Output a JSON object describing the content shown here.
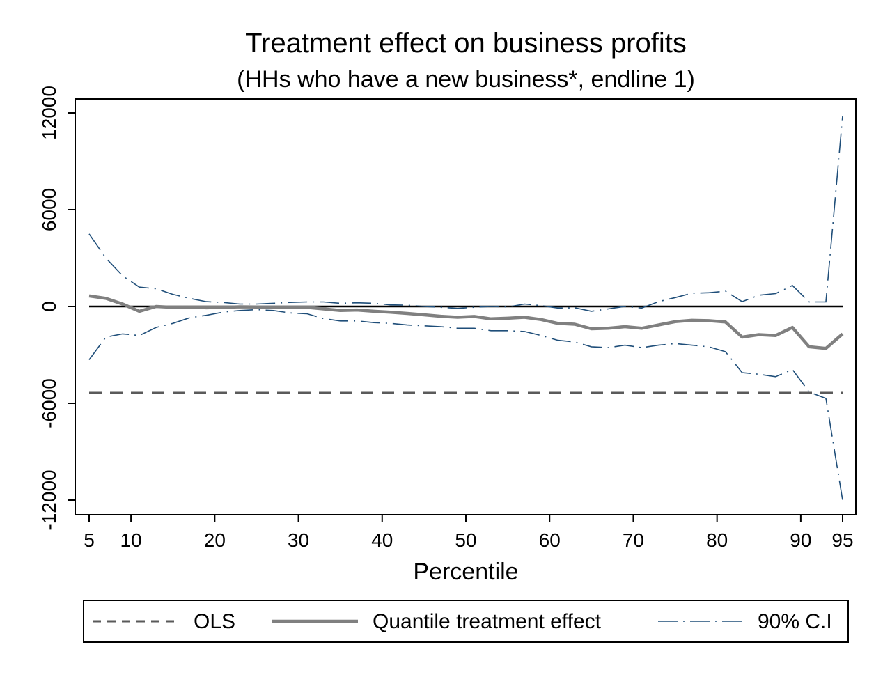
{
  "chart_data": {
    "type": "line",
    "title": "Treatment effect on business profits",
    "subtitle": "(HHs who have a new business*, endline 1)",
    "xlabel": "Percentile",
    "ylabel": "",
    "xlim": [
      5,
      95
    ],
    "ylim": [
      -12000,
      12000
    ],
    "x_ticks": [
      5,
      10,
      20,
      30,
      40,
      50,
      60,
      70,
      80,
      90,
      95
    ],
    "x_tick_labels": [
      "5",
      "10",
      "20",
      "30",
      "40",
      "50",
      "60",
      "70",
      "80",
      "90",
      "95"
    ],
    "y_ticks": [
      -12000,
      -6000,
      0,
      6000,
      12000
    ],
    "y_tick_labels": [
      "-12000",
      "-6000",
      "0",
      "6000",
      "12000"
    ],
    "grid": false,
    "legend_position": "bottom",
    "x": [
      5,
      7,
      9,
      11,
      13,
      15,
      17,
      19,
      21,
      23,
      25,
      27,
      29,
      31,
      33,
      35,
      37,
      39,
      41,
      43,
      45,
      47,
      49,
      51,
      53,
      55,
      57,
      59,
      61,
      63,
      65,
      67,
      69,
      71,
      73,
      75,
      77,
      79,
      81,
      83,
      85,
      87,
      89,
      91,
      93,
      95
    ],
    "zero_line": {
      "y": 0,
      "color": "#000000"
    },
    "series": [
      {
        "name": "OLS",
        "style": "dashed",
        "color": "#5a5a5a",
        "constant": -5350
      },
      {
        "name": "Quantile treatment effect",
        "style": "solid",
        "color": "#808080",
        "values": [
          650,
          500,
          150,
          -300,
          0,
          -50,
          -30,
          -80,
          -50,
          -20,
          -30,
          -30,
          -50,
          -50,
          -150,
          -250,
          -220,
          -300,
          -360,
          -430,
          -520,
          -610,
          -670,
          -620,
          -770,
          -730,
          -670,
          -810,
          -1050,
          -1100,
          -1380,
          -1350,
          -1250,
          -1350,
          -1150,
          -940,
          -860,
          -880,
          -960,
          -1900,
          -1750,
          -1800,
          -1300,
          -2500,
          -2600,
          -1700
        ]
      },
      {
        "name": "90% C.I",
        "style": "dash-dot",
        "color": "#1f4e79",
        "upper": [
          4500,
          3000,
          1900,
          1200,
          1100,
          750,
          500,
          300,
          250,
          150,
          150,
          200,
          250,
          280,
          280,
          200,
          230,
          200,
          100,
          80,
          0,
          -50,
          -120,
          -50,
          0,
          -30,
          150,
          50,
          -100,
          -80,
          -300,
          -150,
          0,
          -100,
          300,
          550,
          820,
          850,
          950,
          300,
          700,
          800,
          1300,
          280,
          280,
          11800
        ],
        "lower": [
          -3300,
          -1900,
          -1700,
          -1800,
          -1300,
          -1050,
          -700,
          -550,
          -350,
          -250,
          -200,
          -250,
          -400,
          -450,
          -750,
          -900,
          -900,
          -1000,
          -1050,
          -1150,
          -1200,
          -1250,
          -1350,
          -1350,
          -1500,
          -1500,
          -1550,
          -1800,
          -2100,
          -2200,
          -2500,
          -2550,
          -2400,
          -2550,
          -2400,
          -2300,
          -2400,
          -2500,
          -2800,
          -4100,
          -4200,
          -4350,
          -3900,
          -5300,
          -5700,
          -12000
        ]
      }
    ]
  }
}
